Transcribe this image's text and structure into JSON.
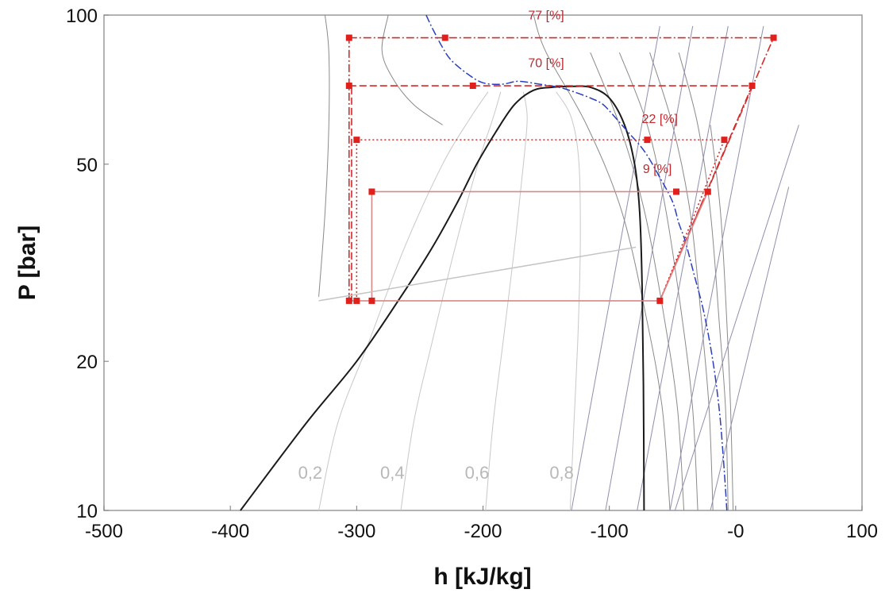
{
  "chart_data": {
    "type": "line",
    "xlabel": "h [kJ/kg]",
    "ylabel": "P [bar]",
    "xlim": [
      -500,
      100
    ],
    "ylim": [
      10,
      100
    ],
    "y_scale": "log",
    "grid": false,
    "x_ticks": [
      "-500",
      "-400",
      "-300",
      "-200",
      "-100",
      "-0",
      "100"
    ],
    "x_tick_values": [
      -500,
      -400,
      -300,
      -200,
      -100,
      0,
      100
    ],
    "y_ticks": [
      "100",
      "50",
      "20",
      "10"
    ],
    "y_tick_values": [
      100,
      50,
      20,
      10
    ],
    "colors": {
      "saturation": "#1a1a1a",
      "quality": "#c8c8c8",
      "isotherm": "#8f8fb0",
      "isentrope": "#8a8a8a",
      "cycle": "#d42a2a",
      "cycle_light": "#e3a5a5",
      "dome_path": "#2a3fbf"
    },
    "saturation_dome": {
      "h": [
        -392,
        -340,
        -300,
        -265,
        -240,
        -220,
        -205,
        -190,
        -175,
        -160,
        -145,
        -130,
        -115,
        -100,
        -88,
        -80,
        -76,
        -74,
        -73,
        -72.5
      ],
      "p": [
        10,
        15,
        20,
        27,
        34,
        42,
        50,
        58,
        66,
        70.5,
        71.5,
        71.8,
        71.5,
        68,
        60,
        50,
        40,
        28,
        18,
        10
      ]
    },
    "quality_lines": [
      {
        "label": "0,2",
        "h": [
          -330,
          -315,
          -290,
          -262,
          -232,
          -210,
          -196
        ],
        "p": [
          10,
          15,
          22,
          34,
          50,
          62,
          70
        ]
      },
      {
        "label": "0,4",
        "h": [
          -265,
          -255,
          -240,
          -222,
          -204,
          -192,
          -186
        ],
        "p": [
          10,
          15,
          22,
          34,
          50,
          62,
          70
        ]
      },
      {
        "label": "0,6",
        "h": [
          -198,
          -192,
          -184,
          -175,
          -168,
          -165,
          -168
        ],
        "p": [
          10,
          15,
          22,
          34,
          50,
          62,
          70
        ]
      },
      {
        "label": "0,8",
        "h": [
          -131,
          -128,
          -125,
          -123,
          -124,
          -130,
          -142
        ],
        "p": [
          10,
          15,
          22,
          34,
          50,
          62,
          70
        ]
      }
    ],
    "isotherms": [
      {
        "h": [
          -130,
          -60
        ],
        "p": [
          10,
          95
        ]
      },
      {
        "h": [
          -103,
          -34
        ],
        "p": [
          10,
          95
        ]
      },
      {
        "h": [
          -78,
          -6
        ],
        "p": [
          10,
          95
        ]
      },
      {
        "h": [
          -52,
          22
        ],
        "p": [
          10,
          95
        ]
      },
      {
        "h": [
          -20,
          42
        ],
        "p": [
          10,
          45
        ]
      },
      {
        "h": [
          -48,
          50
        ],
        "p": [
          10,
          60
        ]
      }
    ],
    "isentropes": [
      {
        "h": [
          -52,
          -58,
          -70,
          -90,
          -118,
          -150,
          -160
        ],
        "p": [
          10,
          16,
          24,
          40,
          60,
          84,
          100
        ]
      },
      {
        "h": [
          -41,
          -46,
          -56,
          -72,
          -92,
          -115
        ],
        "p": [
          10,
          16,
          24,
          40,
          60,
          84
        ]
      },
      {
        "h": [
          -30,
          -34,
          -42,
          -55,
          -70,
          -92
        ],
        "p": [
          10,
          16,
          24,
          40,
          60,
          84
        ]
      },
      {
        "h": [
          -18,
          -21,
          -27,
          -36,
          -50,
          -68
        ],
        "p": [
          10,
          16,
          24,
          40,
          60,
          84
        ]
      },
      {
        "h": [
          -6,
          -8,
          -13,
          -20,
          -30,
          -45
        ],
        "p": [
          10,
          16,
          24,
          40,
          60,
          84
        ]
      },
      {
        "h": [
          -2,
          -4,
          -7,
          -12,
          -20
        ],
        "p": [
          10,
          16,
          24,
          40,
          60
        ]
      },
      {
        "h": [
          -330,
          -325,
          -322,
          -322,
          -325
        ],
        "p": [
          27,
          40,
          60,
          84,
          100
        ]
      },
      {
        "h": [
          -275,
          -280,
          -272,
          -255,
          -232
        ],
        "p": [
          100,
          85,
          75,
          66,
          60
        ]
      }
    ],
    "dome_path": {
      "h": [
        -245,
        -240,
        -232,
        -225,
        -212,
        -200,
        -185,
        -172,
        -155,
        -140,
        -128,
        -115,
        -105,
        -95,
        -85,
        -72,
        -60,
        -50,
        -45,
        -40,
        -33,
        -25,
        -18,
        -13,
        -10,
        -8,
        -7
      ],
      "p": [
        100,
        94,
        86,
        81,
        76,
        73,
        72.5,
        73.5,
        72.5,
        71.5,
        70,
        68,
        66,
        62,
        58,
        53,
        47,
        42,
        38,
        35,
        30,
        25,
        20,
        16,
        13,
        11,
        10
      ]
    },
    "cycle_points": [
      {
        "h": -306,
        "p": 90
      },
      {
        "h": -230,
        "p": 90
      },
      {
        "h": 30,
        "p": 90
      },
      {
        "h": -306,
        "p": 72
      },
      {
        "h": -208,
        "p": 72
      },
      {
        "h": 13,
        "p": 72
      },
      {
        "h": -300,
        "p": 56
      },
      {
        "h": -70,
        "p": 56
      },
      {
        "h": -9,
        "p": 56
      },
      {
        "h": -288,
        "p": 44
      },
      {
        "h": -47,
        "p": 44
      },
      {
        "h": -22,
        "p": 44
      },
      {
        "h": -306,
        "p": 26.5
      },
      {
        "h": -300,
        "p": 26.5
      },
      {
        "h": -288,
        "p": 26.5
      },
      {
        "h": -60,
        "p": 26.5
      }
    ],
    "cycle_lines": [
      {
        "h": [
          -306,
          30
        ],
        "p": [
          90,
          90
        ],
        "style": "dashdot"
      },
      {
        "h": [
          -306,
          13
        ],
        "p": [
          72,
          72
        ],
        "style": "dash"
      },
      {
        "h": [
          -300,
          -9
        ],
        "p": [
          56,
          56
        ],
        "style": "dot"
      },
      {
        "h": [
          -288,
          -22
        ],
        "p": [
          44,
          44
        ],
        "style": "solid"
      },
      {
        "h": [
          -60,
          30
        ],
        "p": [
          26.5,
          90
        ],
        "style": "dashdot"
      },
      {
        "h": [
          -60,
          13
        ],
        "p": [
          26.5,
          72
        ],
        "style": "dash"
      },
      {
        "h": [
          -60,
          -9
        ],
        "p": [
          26.5,
          56
        ],
        "style": "dot"
      },
      {
        "h": [
          -60,
          -22
        ],
        "p": [
          26.5,
          44
        ],
        "style": "solid"
      },
      {
        "h": [
          -306,
          -60
        ],
        "p": [
          26.5,
          26.5
        ],
        "style": "solid"
      },
      {
        "h": [
          -306,
          -306
        ],
        "p": [
          26.5,
          90
        ],
        "style": "dashdot"
      },
      {
        "h": [
          -304,
          -304
        ],
        "p": [
          26.5,
          72
        ],
        "style": "dash"
      },
      {
        "h": [
          -300,
          -300
        ],
        "p": [
          26.5,
          56
        ],
        "style": "dot"
      },
      {
        "h": [
          -288,
          -288
        ],
        "p": [
          26.5,
          44
        ],
        "style": "solid"
      },
      {
        "h": [
          -330,
          -79
        ],
        "p": [
          26.5,
          34
        ],
        "style": "grey"
      }
    ],
    "annotations": [
      {
        "text": "77 [%]",
        "h": -150,
        "p": 98
      },
      {
        "text": "70 [%]",
        "h": -150,
        "p": 78.5
      },
      {
        "text": "22 [%]",
        "h": -60,
        "p": 60.5
      },
      {
        "text": "9 [%]",
        "h": -62,
        "p": 48
      }
    ]
  }
}
